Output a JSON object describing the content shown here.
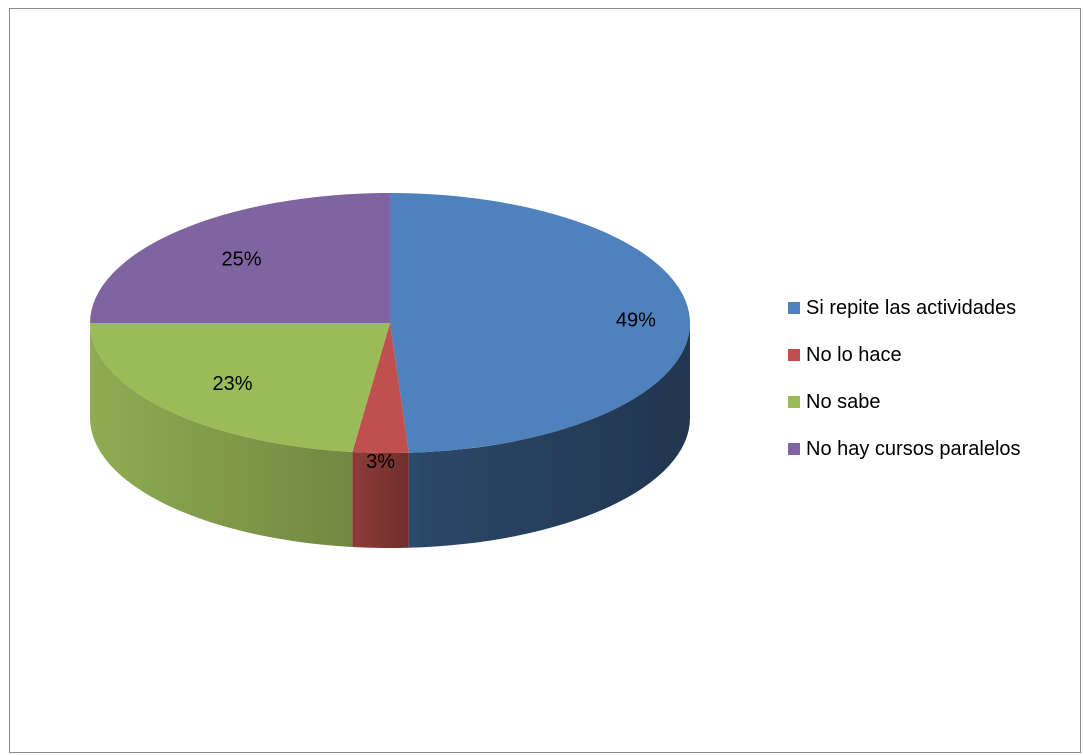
{
  "chart_data": {
    "type": "pie",
    "style": "3d-exploded-none",
    "title": "",
    "legend_position": "right",
    "start_angle_deg": 0,
    "direction": "clockwise",
    "slices": [
      {
        "label": "Si repite las actividades",
        "value": 49,
        "display": "49%",
        "color": "#4F81BD"
      },
      {
        "label": "No lo hace",
        "value": 3,
        "display": "3%",
        "color": "#C0504D"
      },
      {
        "label": "No sabe",
        "value": 23,
        "display": "23%",
        "color": "#9BBB59"
      },
      {
        "label": "No hay cursos paralelos",
        "value": 25,
        "display": "25%",
        "color": "#8064A2"
      }
    ]
  }
}
